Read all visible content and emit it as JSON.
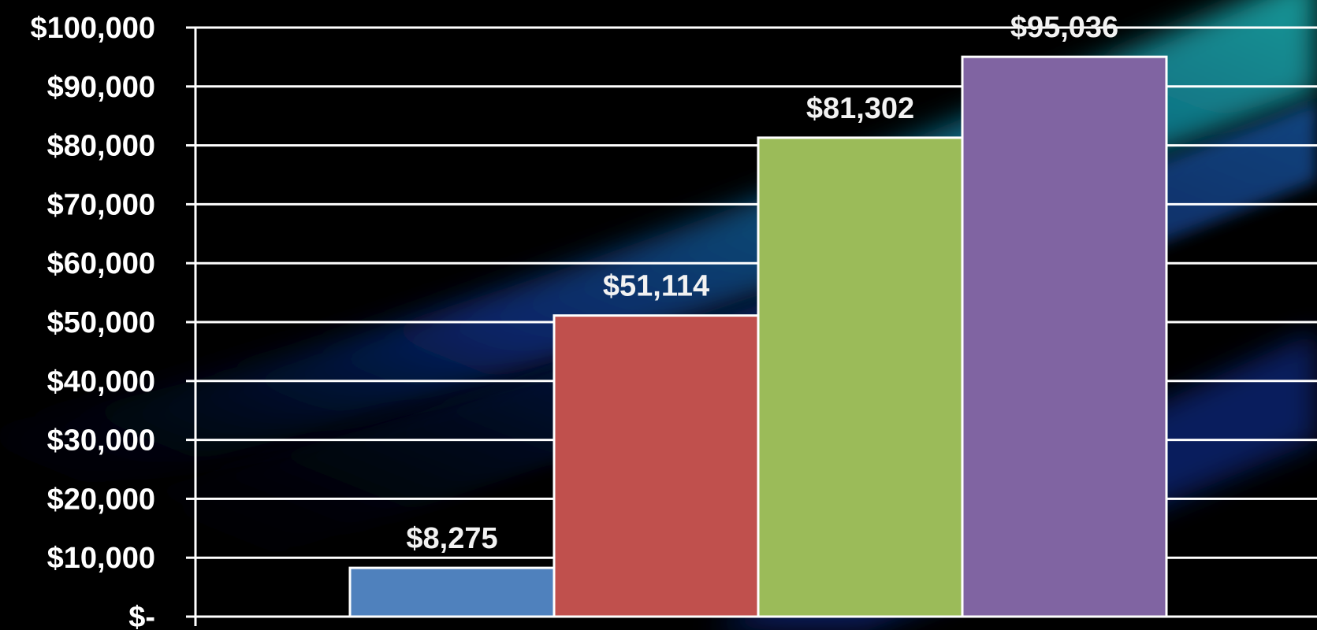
{
  "chart_data": {
    "type": "bar",
    "categories": [
      "",
      "",
      "",
      ""
    ],
    "values": [
      8275,
      51114,
      81302,
      95036
    ],
    "data_labels": [
      "$8,275",
      "$51,114",
      "$81,302",
      "$95,036"
    ],
    "colors": [
      "#4f81bd",
      "#c0504d",
      "#9bbb59",
      "#8064a2"
    ],
    "ylim": [
      0,
      100000
    ],
    "y_ticks": [
      0,
      10000,
      20000,
      30000,
      40000,
      50000,
      60000,
      70000,
      80000,
      90000,
      100000
    ],
    "y_tick_labels": [
      "$-",
      "$10,000",
      "$20,000",
      "$30,000",
      "$40,000",
      "$50,000",
      "$60,000",
      "$70,000",
      "$80,000",
      "$90,000",
      "$100,000"
    ],
    "grid": true,
    "title": "",
    "xlabel": "",
    "ylabel": "",
    "gridline_color": "#ffffff",
    "background": "#000000"
  }
}
